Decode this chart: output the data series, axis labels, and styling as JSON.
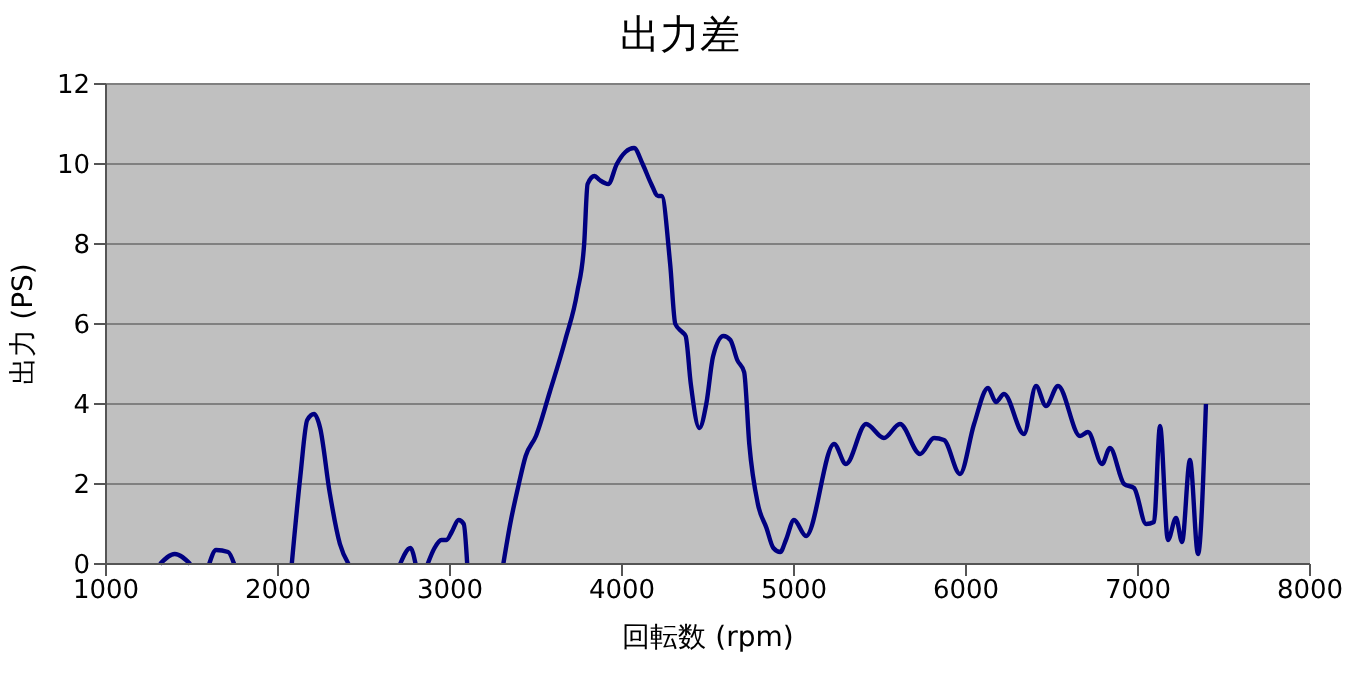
{
  "chart_data": {
    "type": "line",
    "title": "出力差",
    "xlabel": "回転数 (rpm)",
    "ylabel": "出力 (PS)",
    "x": [
      1314,
      1400,
      1490,
      1545,
      1600,
      1640,
      1710,
      1745,
      1900,
      2080,
      2130,
      2170,
      2210,
      2245,
      2300,
      2360,
      2410,
      2560,
      2710,
      2770,
      2800,
      2835,
      2870,
      2910,
      2950,
      2980,
      3010,
      3050,
      3080,
      3100,
      3200,
      3310,
      3350,
      3400,
      3440,
      3500,
      3580,
      3670,
      3740,
      3780,
      3800,
      3840,
      3870,
      3920,
      3970,
      4020,
      4070,
      4120,
      4170,
      4210,
      4230,
      4280,
      4310,
      4350,
      4370,
      4400,
      4450,
      4490,
      4530,
      4590,
      4630,
      4670,
      4710,
      4740,
      4790,
      4840,
      4880,
      4920,
      4953,
      5000,
      5070,
      5233,
      5302,
      5419,
      5523,
      5616,
      5733,
      5814,
      5872,
      5965,
      6047,
      6128,
      6174,
      6221,
      6337,
      6407,
      6465,
      6535,
      6663,
      6709,
      6791,
      6837,
      6919,
      6977,
      7047,
      7093,
      7128,
      7174,
      7221,
      7256,
      7302,
      7349,
      7395
    ],
    "series": [
      {
        "color": "#000080",
        "values": [
          0,
          0.25,
          0,
          null,
          0,
          0.35,
          0.3,
          0,
          null,
          0,
          2.2,
          3.6,
          3.75,
          3.4,
          1.8,
          0.5,
          0,
          null,
          0,
          0.4,
          0,
          null,
          0,
          0.4,
          0.6,
          0.6,
          0.8,
          1.1,
          1.0,
          0,
          null,
          0,
          1.0,
          2.0,
          2.7,
          3.2,
          4.3,
          5.6,
          6.8,
          8.0,
          9.5,
          9.7,
          9.6,
          9.5,
          10.0,
          10.3,
          10.4,
          10.0,
          9.5,
          9.2,
          9.2,
          7.5,
          6.0,
          5.8,
          5.7,
          4.5,
          3.4,
          4.0,
          5.2,
          5.7,
          5.6,
          5.1,
          4.8,
          3.0,
          1.5,
          0.9,
          0.4,
          0.3,
          0.6,
          1.1,
          0.7,
          3.0,
          2.5,
          3.5,
          3.15,
          3.5,
          2.75,
          3.15,
          3.1,
          2.25,
          3.5,
          4.4,
          4.05,
          4.25,
          3.25,
          4.45,
          3.95,
          4.45,
          3.2,
          3.3,
          2.5,
          2.9,
          2.0,
          1.9,
          1.0,
          1.05,
          3.45,
          0.6,
          1.15,
          0.55,
          2.6,
          0.25,
          4.0
        ]
      }
    ],
    "xlim": [
      1000,
      8000
    ],
    "xticks": [
      1000,
      2000,
      3000,
      4000,
      5000,
      6000,
      7000,
      8000
    ],
    "ylim": [
      0,
      12
    ],
    "yticks": [
      0,
      2,
      4,
      6,
      8,
      10,
      12
    ],
    "grid": "y",
    "legend": false,
    "marker": "none",
    "line_style": "solid"
  }
}
